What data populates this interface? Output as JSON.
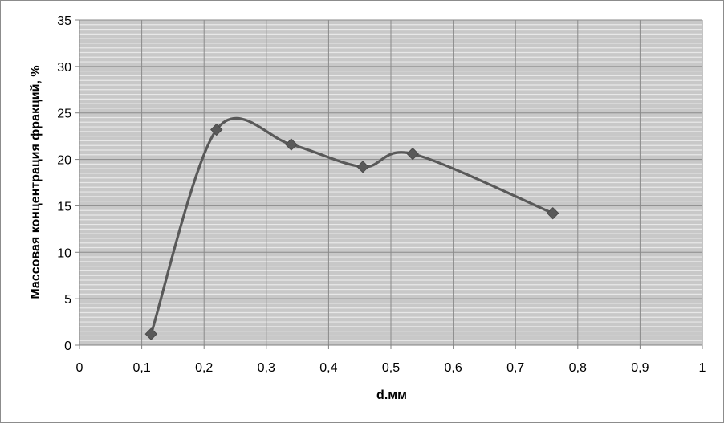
{
  "chart_data": {
    "type": "scatter",
    "title": "",
    "xlabel": "d.мм",
    "ylabel": "Массовая концентрация фракций, %",
    "xlim": [
      0,
      1
    ],
    "ylim": [
      0,
      35
    ],
    "x_ticks": [
      0,
      0.1,
      0.2,
      0.3,
      0.4,
      0.5,
      0.6,
      0.7,
      0.8,
      0.9,
      1
    ],
    "x_tick_labels": [
      "0",
      "0,1",
      "0,2",
      "0,3",
      "0,4",
      "0,5",
      "0,6",
      "0,7",
      "0,8",
      "0,9",
      "1"
    ],
    "y_ticks": [
      0,
      5,
      10,
      15,
      20,
      25,
      30,
      35
    ],
    "y_tick_labels": [
      "0",
      "5",
      "10",
      "15",
      "20",
      "25",
      "30",
      "35"
    ],
    "minor_y_gridline_step": 0.5,
    "grid": true,
    "smoothed_line": true,
    "marker": "diamond",
    "legend": "none",
    "colors": {
      "series": "#595959",
      "plot_background": "#c8c8c8",
      "minor_grid": "#e8e8e8",
      "major_grid": "#8a8a8a"
    },
    "series": [
      {
        "x": [
          0.115,
          0.22,
          0.34,
          0.455,
          0.535,
          0.76
        ],
        "y": [
          1.2,
          23.2,
          21.6,
          19.2,
          20.6,
          14.2
        ]
      }
    ]
  }
}
